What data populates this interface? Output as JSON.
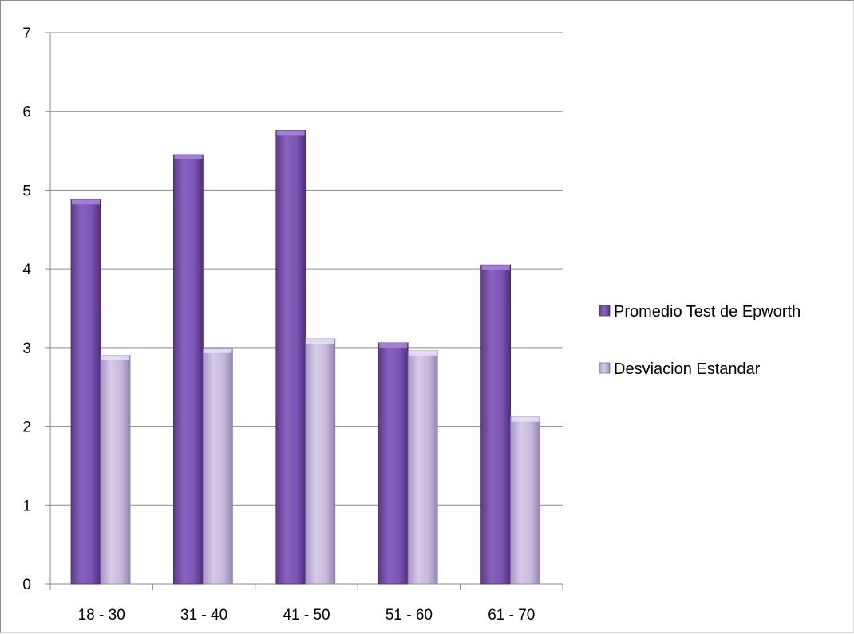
{
  "chart_data": {
    "type": "bar",
    "categories": [
      "18 - 30",
      "31 - 40",
      "41 - 50",
      "51 - 60",
      "61 - 70"
    ],
    "series": [
      {
        "name": "Promedio Test de Epworth",
        "values": [
          4.88,
          5.45,
          5.76,
          3.06,
          4.05
        ],
        "color": "#7b4fb0"
      },
      {
        "name": "Desviacion Estandar",
        "values": [
          2.9,
          2.99,
          3.11,
          2.96,
          2.12
        ],
        "color": "#c1b3d8"
      }
    ],
    "y_ticks": [
      "0",
      "1",
      "2",
      "3",
      "4",
      "5",
      "6",
      "7"
    ],
    "ylim": [
      0,
      7
    ],
    "grid": true,
    "legend_position": "right"
  }
}
